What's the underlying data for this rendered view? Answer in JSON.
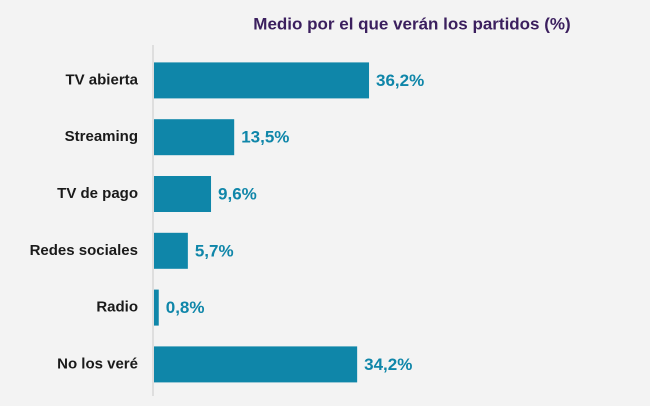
{
  "chart_data": {
    "type": "bar",
    "orientation": "horizontal",
    "title": "Medio por el que verán los partidos (%)",
    "categories": [
      "TV abierta",
      "Streaming",
      "TV de pago",
      "Redes sociales",
      "Radio",
      "No los veré"
    ],
    "values": [
      36.2,
      13.5,
      9.6,
      5.7,
      0.8,
      34.2
    ],
    "value_labels": [
      "36,2%",
      "13,5%",
      "9,6%",
      "5,7%",
      "0,8%",
      "34,2%"
    ],
    "color": "#0f86a9"
  }
}
